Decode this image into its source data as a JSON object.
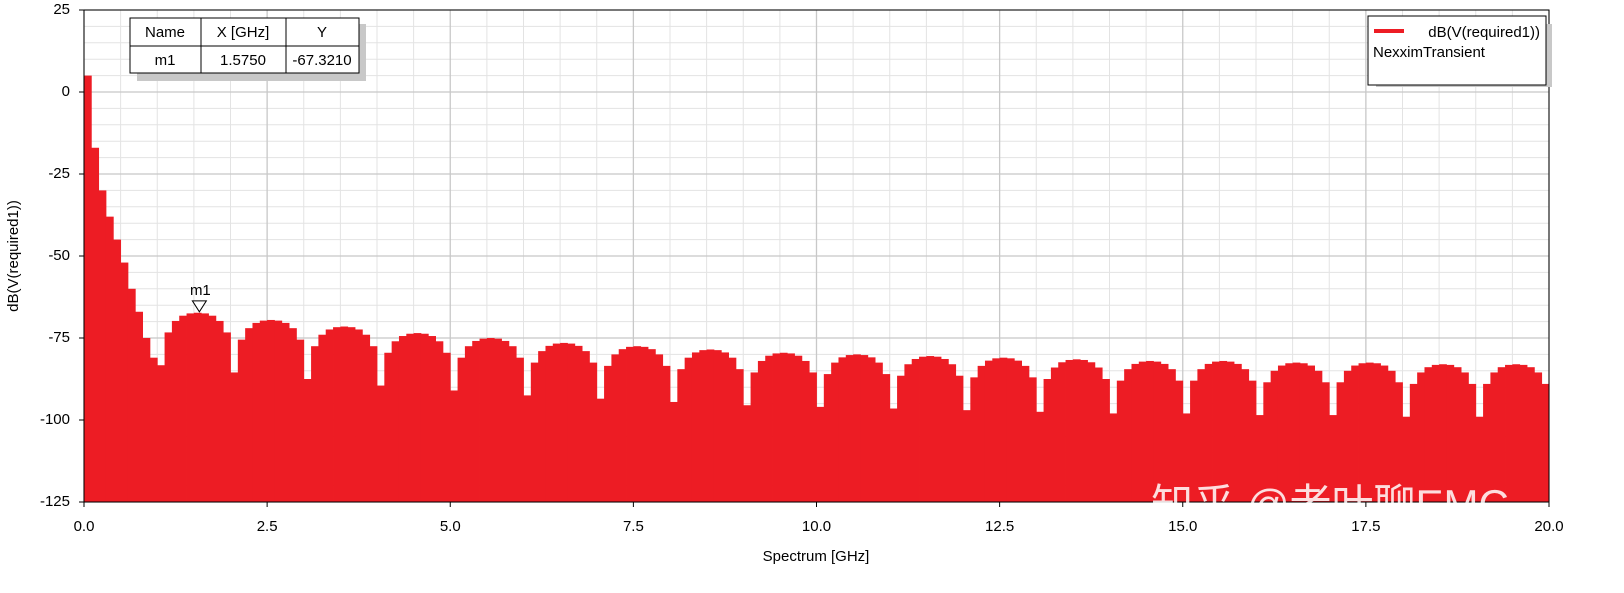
{
  "chart_data": {
    "type": "bar",
    "x_label": "Spectrum [GHz]",
    "y_label": "dB(V(required1))",
    "xlim": [
      0,
      20
    ],
    "ylim": [
      -125,
      25
    ],
    "xticks": [
      {
        "value": 0,
        "label": "0.0"
      },
      2.5,
      {
        "value": 5,
        "label": "5.0"
      },
      7.5,
      {
        "value": 10,
        "label": "10.0"
      },
      12.5,
      {
        "value": 15,
        "label": "15.0"
      },
      17.5,
      {
        "value": 20,
        "label": "20.0"
      }
    ],
    "yticks": [
      -125,
      -100,
      -75,
      -50,
      -25,
      0,
      25
    ],
    "grid": true,
    "legend_position": "upper right",
    "legend_subtitle": "NexximTransient",
    "watermark": "知乎 @老叶聊EMC",
    "marker_table_headers": [
      "Name",
      "X [GHz]",
      "Y"
    ],
    "marker": {
      "name": "m1",
      "x": {
        "value": 1.575,
        "label": "1.5750"
      },
      "y": {
        "value": -67.321,
        "label": "-67.3210"
      }
    },
    "x": [
      0,
      0.1,
      0.2,
      0.3,
      0.4,
      0.5,
      0.6,
      0.7,
      0.8,
      0.9,
      1,
      1.1,
      1.2,
      1.3,
      1.4,
      1.5,
      1.6,
      1.7,
      1.8,
      1.9,
      2,
      2.1,
      2.2,
      2.3,
      2.4,
      2.5,
      2.6,
      2.7,
      2.8,
      2.9,
      3,
      3.1,
      3.2,
      3.3,
      3.4,
      3.5,
      3.6,
      3.7,
      3.8,
      3.9,
      4,
      4.1,
      4.2,
      4.3,
      4.4,
      4.5,
      4.6,
      4.7,
      4.8,
      4.9,
      5,
      5.1,
      5.2,
      5.3,
      5.4,
      5.5,
      5.6,
      5.7,
      5.8,
      5.9,
      6,
      6.1,
      6.2,
      6.3,
      6.4,
      6.5,
      6.6,
      6.7,
      6.8,
      6.9,
      7,
      7.1,
      7.2,
      7.3,
      7.4,
      7.5,
      7.6,
      7.7,
      7.8,
      7.9,
      8,
      8.1,
      8.2,
      8.3,
      8.4,
      8.5,
      8.6,
      8.7,
      8.8,
      8.9,
      9,
      9.1,
      9.2,
      9.3,
      9.4,
      9.5,
      9.6,
      9.7,
      9.8,
      9.9,
      10,
      10.1,
      10.2,
      10.3,
      10.4,
      10.5,
      10.6,
      10.7,
      10.8,
      10.9,
      11,
      11.1,
      11.2,
      11.3,
      11.4,
      11.5,
      11.6,
      11.7,
      11.8,
      11.9,
      12,
      12.1,
      12.2,
      12.3,
      12.4,
      12.5,
      12.6,
      12.7,
      12.8,
      12.9,
      13,
      13.1,
      13.2,
      13.3,
      13.4,
      13.5,
      13.6,
      13.7,
      13.8,
      13.9,
      14,
      14.1,
      14.2,
      14.3,
      14.4,
      14.5,
      14.6,
      14.7,
      14.8,
      14.9,
      15,
      15.1,
      15.2,
      15.3,
      15.4,
      15.5,
      15.6,
      15.7,
      15.8,
      15.9,
      16,
      16.1,
      16.2,
      16.3,
      16.4,
      16.5,
      16.6,
      16.7,
      16.8,
      16.9,
      17,
      17.1,
      17.2,
      17.3,
      17.4,
      17.5,
      17.6,
      17.7,
      17.8,
      17.9,
      18,
      18.1,
      18.2,
      18.3,
      18.4,
      18.5,
      18.6,
      18.7,
      18.8,
      18.9,
      19,
      19.1,
      19.2,
      19.3,
      19.4,
      19.5,
      19.6,
      19.7,
      19.8,
      19.9,
      20
    ],
    "series": [
      {
        "name": "dB(V(required1))",
        "color": "#ed1c24",
        "values": [
          5,
          -17,
          -30,
          -38,
          -45,
          -52,
          -60,
          -67,
          -75,
          -81,
          -83.3,
          -73.3,
          -69.8,
          -68.2,
          -67.5,
          -67.3,
          -67.5,
          -68.2,
          -69.8,
          -73.3,
          -85.5,
          -75.5,
          -72,
          -70.4,
          -69.7,
          -69.5,
          -69.7,
          -70.4,
          -72,
          -75.5,
          -87.5,
          -77.5,
          -74,
          -72.4,
          -71.7,
          -71.5,
          -71.7,
          -72.4,
          -74,
          -77.5,
          -89.5,
          -79.5,
          -76,
          -74.4,
          -73.7,
          -73.5,
          -73.7,
          -74.4,
          -76,
          -79.5,
          -91,
          -81,
          -77.5,
          -75.9,
          -75.2,
          -75,
          -75.2,
          -75.9,
          -77.5,
          -81,
          -92.5,
          -82.5,
          -79,
          -77.4,
          -76.7,
          -76.5,
          -76.7,
          -77.4,
          -79,
          -82.5,
          -93.5,
          -83.5,
          -80,
          -78.4,
          -77.7,
          -77.5,
          -77.7,
          -78.4,
          -80,
          -83.5,
          -94.5,
          -84.5,
          -81,
          -79.4,
          -78.7,
          -78.5,
          -78.7,
          -79.4,
          -81,
          -84.5,
          -95.5,
          -85.5,
          -82,
          -80.4,
          -79.7,
          -79.5,
          -79.7,
          -80.4,
          -82,
          -85.5,
          -96,
          -86,
          -82.5,
          -80.9,
          -80.2,
          -80,
          -80.2,
          -80.9,
          -82.5,
          -86,
          -96.5,
          -86.5,
          -83,
          -81.4,
          -80.7,
          -80.5,
          -80.7,
          -81.4,
          -83,
          -86.5,
          -97,
          -87,
          -83.5,
          -81.9,
          -81.2,
          -81,
          -81.2,
          -81.9,
          -83.5,
          -87,
          -97.5,
          -87.5,
          -84,
          -82.4,
          -81.7,
          -81.5,
          -81.7,
          -82.4,
          -84,
          -87.5,
          -98,
          -88,
          -84.5,
          -82.9,
          -82.2,
          -82,
          -82.2,
          -82.9,
          -84.5,
          -88,
          -98,
          -88,
          -84.5,
          -82.9,
          -82.2,
          -82,
          -82.2,
          -82.9,
          -84.5,
          -88,
          -98.5,
          -88.5,
          -85,
          -83.4,
          -82.7,
          -82.5,
          -82.7,
          -83.4,
          -85,
          -88.5,
          -98.5,
          -88.5,
          -85,
          -83.4,
          -82.7,
          -82.5,
          -82.7,
          -83.4,
          -85,
          -88.5,
          -99,
          -89,
          -85.5,
          -83.9,
          -83.2,
          -83,
          -83.2,
          -83.9,
          -85.5,
          -89,
          -99,
          -89,
          -85.5,
          -83.9,
          -83.2,
          -83,
          -83.2,
          -83.9,
          -85.5,
          -89,
          -99
        ]
      }
    ]
  }
}
